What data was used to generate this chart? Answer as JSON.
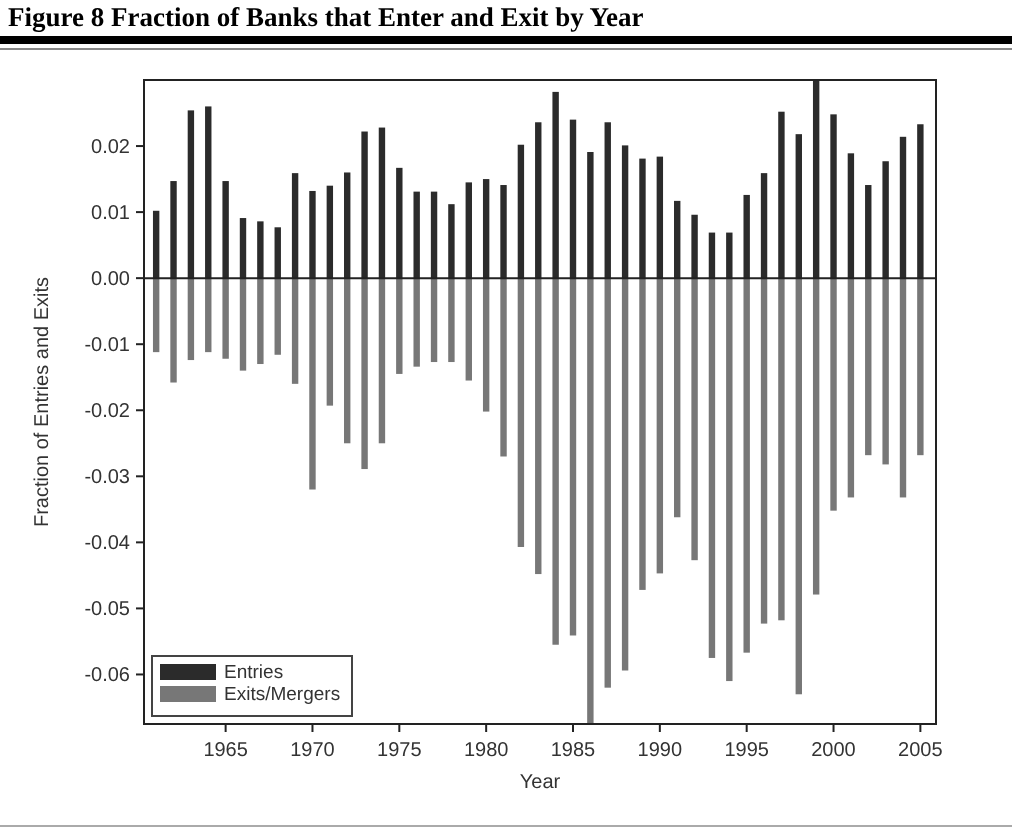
{
  "chart_data": {
    "type": "bar",
    "title": "Figure 8  Fraction of Banks that Enter and Exit by Year",
    "xlabel": "Year",
    "ylabel": "Fraction of Entries and Exits",
    "x": [
      1961,
      1962,
      1963,
      1964,
      1965,
      1966,
      1967,
      1968,
      1969,
      1970,
      1971,
      1972,
      1973,
      1974,
      1975,
      1976,
      1977,
      1978,
      1979,
      1980,
      1981,
      1982,
      1983,
      1984,
      1985,
      1986,
      1987,
      1988,
      1989,
      1990,
      1991,
      1992,
      1993,
      1994,
      1995,
      1996,
      1997,
      1998,
      1999,
      2000,
      2001,
      2002,
      2003,
      2004,
      2005
    ],
    "series": [
      {
        "name": "Entries",
        "color": "#2b2b2b",
        "values": [
          0.0102,
          0.0147,
          0.0254,
          0.026,
          0.0147,
          0.0091,
          0.0086,
          0.0077,
          0.0159,
          0.0132,
          0.014,
          0.016,
          0.0222,
          0.0228,
          0.0167,
          0.0131,
          0.0131,
          0.0112,
          0.0145,
          0.015,
          0.0141,
          0.0202,
          0.0236,
          0.0282,
          0.024,
          0.0191,
          0.0236,
          0.0201,
          0.0181,
          0.0184,
          0.0117,
          0.0096,
          0.0069,
          0.0069,
          0.0126,
          0.0159,
          0.0252,
          0.0218,
          0.03,
          0.0248,
          0.0189,
          0.0141,
          0.0177,
          0.0214,
          0.0233
        ]
      },
      {
        "name": "Exits/Mergers",
        "color": "#777777",
        "values": [
          -0.0112,
          -0.0158,
          -0.0124,
          -0.0112,
          -0.0122,
          -0.014,
          -0.013,
          -0.0116,
          -0.016,
          -0.032,
          -0.0193,
          -0.025,
          -0.0289,
          -0.025,
          -0.0145,
          -0.0134,
          -0.0127,
          -0.0127,
          -0.0155,
          -0.0202,
          -0.027,
          -0.0407,
          -0.0448,
          -0.0555,
          -0.0541,
          -0.0675,
          -0.062,
          -0.0594,
          -0.0472,
          -0.0447,
          -0.0362,
          -0.0427,
          -0.0575,
          -0.061,
          -0.0567,
          -0.0523,
          -0.0518,
          -0.063,
          -0.0479,
          -0.0352,
          -0.0332,
          -0.0268,
          -0.0282,
          -0.0332,
          -0.0268
        ]
      }
    ],
    "xlim": [
      1960.3,
      2005.9
    ],
    "xticks": [
      1965,
      1970,
      1975,
      1980,
      1985,
      1990,
      1995,
      2000,
      2005
    ],
    "ylim": [
      -0.0675,
      0.03
    ],
    "yticks": [
      -0.06,
      -0.05,
      -0.04,
      -0.03,
      -0.02,
      -0.01,
      {
        "value": 0,
        "label": "0.00"
      },
      0.01,
      0.02
    ],
    "stacked": true,
    "legend": "bottom left"
  }
}
